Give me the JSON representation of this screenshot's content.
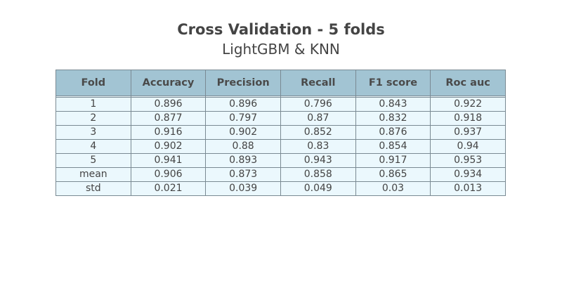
{
  "chart_data": {
    "type": "table",
    "title": "Cross Validation - 5 folds",
    "subtitle": "LightGBM & KNN",
    "columns": [
      "Fold",
      "Accuracy",
      "Precision",
      "Recall",
      "F1 score",
      "Roc auc"
    ],
    "rows": [
      [
        "1",
        "0.896",
        "0.896",
        "0.796",
        "0.843",
        "0.922"
      ],
      [
        "2",
        "0.877",
        "0.797",
        "0.87",
        "0.832",
        "0.918"
      ],
      [
        "3",
        "0.916",
        "0.902",
        "0.852",
        "0.876",
        "0.937"
      ],
      [
        "4",
        "0.902",
        "0.88",
        "0.83",
        "0.854",
        "0.94"
      ],
      [
        "5",
        "0.941",
        "0.893",
        "0.943",
        "0.917",
        "0.953"
      ],
      [
        "mean",
        "0.906",
        "0.873",
        "0.858",
        "0.865",
        "0.934"
      ],
      [
        "std",
        "0.021",
        "0.039",
        "0.049",
        "0.03",
        "0.013"
      ]
    ],
    "colors": {
      "header_fill": "#a2c4d3",
      "cell_fill": "#ebf8fd",
      "border": "#7a8a93"
    }
  }
}
